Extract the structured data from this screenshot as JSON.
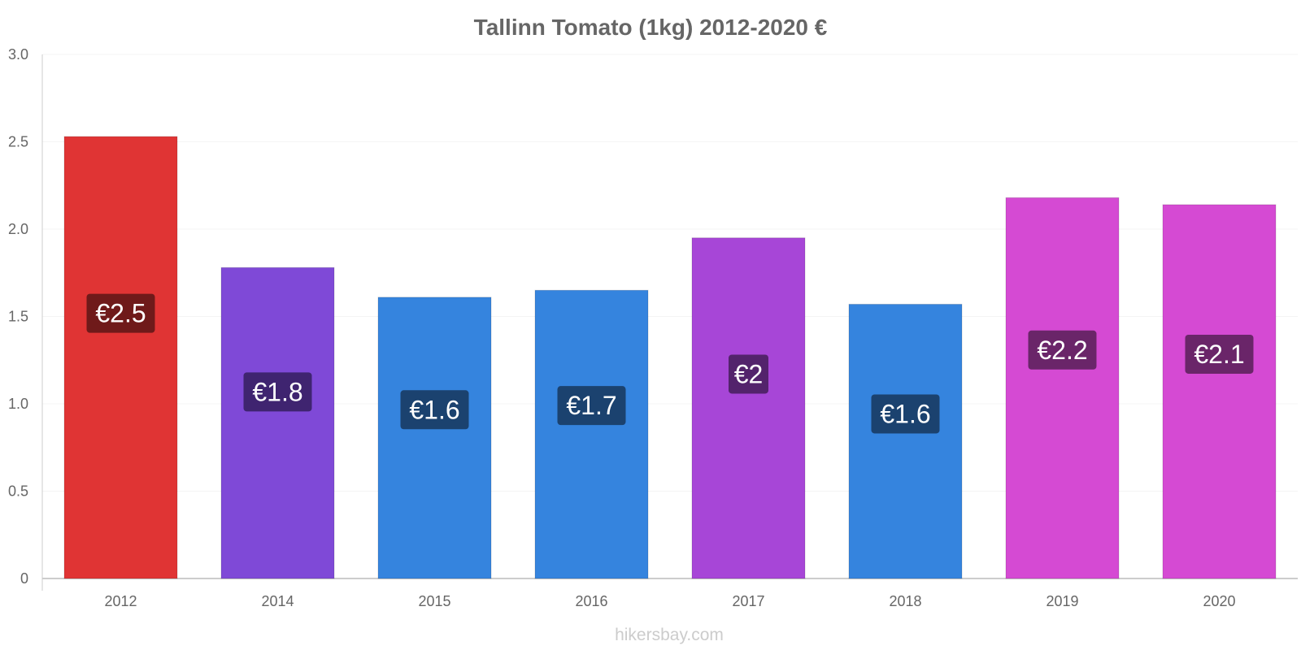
{
  "chart_data": {
    "type": "bar",
    "title": "Tallinn Tomato (1kg) 2012-2020 €",
    "xlabel": "",
    "ylabel": "",
    "ylim": [
      0,
      3
    ],
    "yticks": [
      0,
      0.5,
      1,
      1.5,
      2,
      2.5,
      3
    ],
    "ytick_labels": [
      "0",
      "0.5",
      "1.0",
      "1.5",
      "2.0",
      "2.5",
      "3.0"
    ],
    "categories": [
      "2012",
      "2014",
      "2015",
      "2016",
      "2017",
      "2018",
      "2019",
      "2020"
    ],
    "values": [
      2.53,
      1.78,
      1.61,
      1.65,
      1.95,
      1.57,
      2.18,
      2.14
    ],
    "data_labels": [
      "€2.5",
      "€1.8",
      "€1.6",
      "€1.7",
      "€2",
      "€1.6",
      "€2.2",
      "€2.1"
    ],
    "bar_colors": [
      "#e03434",
      "#7f49d7",
      "#3584de",
      "#3584de",
      "#a746d7",
      "#3584de",
      "#d54ad3",
      "#d54ad3"
    ],
    "label_bg_colors": [
      "#6f1a1a",
      "#3f2470",
      "#1b426f",
      "#1b426f",
      "#53236c",
      "#1b426f",
      "#6a2569",
      "#6a2569"
    ],
    "grid": true
  },
  "watermark": "hikersbay.com"
}
